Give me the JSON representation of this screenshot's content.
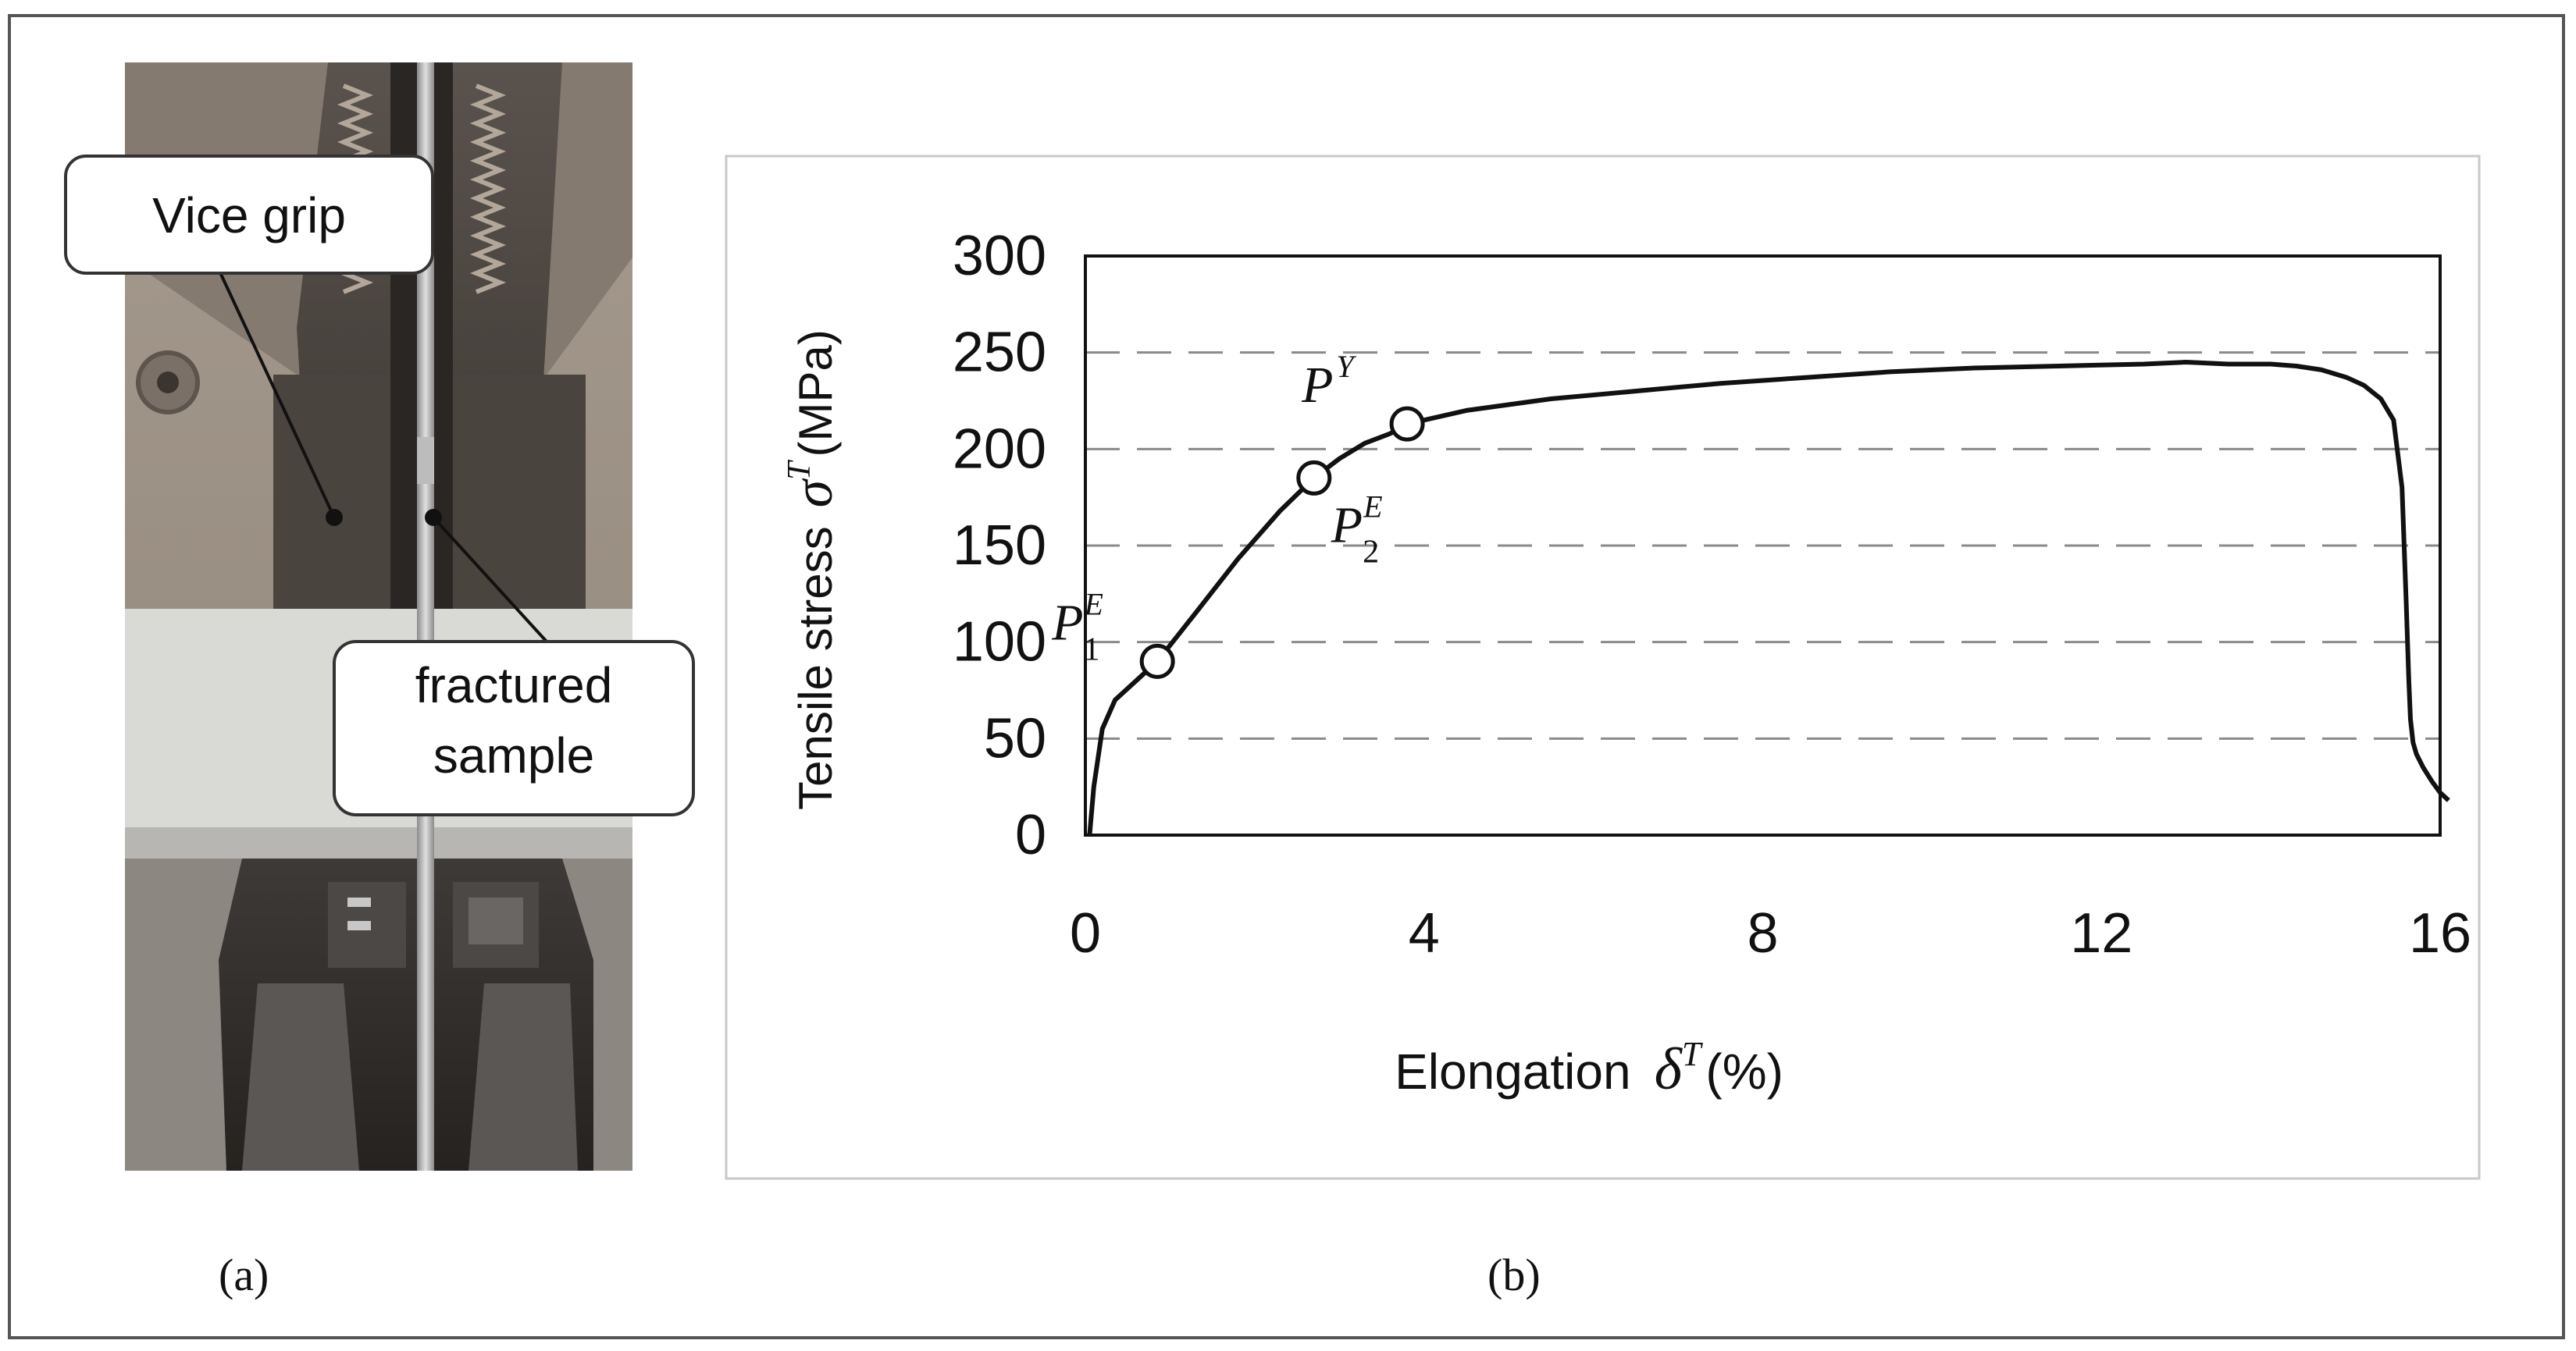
{
  "panel_a": {
    "caption": "(a)",
    "callouts": {
      "vice_grip": "Vice grip",
      "fractured_line1": "fractured",
      "fractured_line2": "sample"
    }
  },
  "panel_b": {
    "caption": "(b)"
  },
  "chart_data": {
    "type": "line",
    "title": "",
    "xlabel_text": "Elongation",
    "xlabel_symbol": "δ",
    "xlabel_sup": "T",
    "xlabel_unit": "(%)",
    "ylabel_text": "Tensile stress",
    "ylabel_symbol": "σ",
    "ylabel_sup": "T",
    "ylabel_unit": "(MPa)",
    "xlim": [
      0,
      16
    ],
    "ylim": [
      0,
      300
    ],
    "x_ticks": [
      "0",
      "4",
      "8",
      "12",
      "16"
    ],
    "y_ticks": [
      "0",
      "50",
      "100",
      "150",
      "200",
      "250",
      "300"
    ],
    "grid": "horizontal dashed",
    "legend": "none",
    "line_color": "#111111",
    "series": [
      {
        "x": [
          0.05,
          0.1,
          0.2,
          0.35,
          0.6,
          0.85,
          1.3,
          1.8,
          2.3,
          2.7,
          3.0,
          3.3,
          3.6,
          3.8,
          4.5,
          5.5,
          6.5,
          7.5,
          8.5,
          9.5,
          10.5,
          11.5,
          12.5,
          13.0,
          13.5,
          14.0,
          14.3,
          14.6,
          14.9,
          15.1,
          15.3,
          15.45,
          15.55,
          15.6,
          15.63,
          15.65,
          15.68,
          15.72,
          15.8,
          15.9,
          16.0,
          16.1
        ],
        "y": [
          0,
          25,
          55,
          70,
          80,
          90,
          115,
          143,
          168,
          185,
          195,
          203,
          208,
          213,
          220,
          226,
          230,
          234,
          237,
          240,
          242,
          243,
          244,
          245,
          244,
          244,
          243,
          241,
          237,
          233,
          226,
          215,
          180,
          120,
          80,
          60,
          48,
          42,
          35,
          28,
          22,
          18
        ]
      }
    ],
    "markers": [
      {
        "name": "P",
        "sub": "1",
        "sup": "E",
        "x": 0.85,
        "y": 90,
        "label_pos": "upper-left"
      },
      {
        "name": "P",
        "sub": "2",
        "sup": "E",
        "x": 2.7,
        "y": 185,
        "label_pos": "lower-right"
      },
      {
        "name": "P",
        "sub": "",
        "sup": "Y",
        "x": 3.8,
        "y": 213,
        "label_pos": "upper-left"
      }
    ]
  }
}
